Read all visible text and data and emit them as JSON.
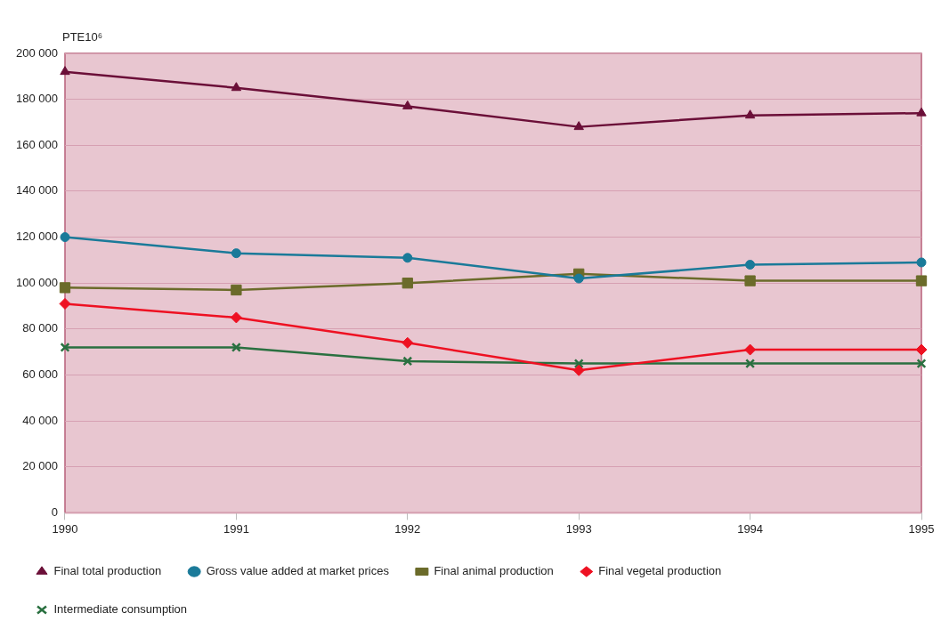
{
  "chart_data": {
    "type": "line",
    "ylabel": "PTE10⁶",
    "categories": [
      "1990",
      "1991",
      "1992",
      "1993",
      "1994",
      "1995"
    ],
    "ylim": [
      0,
      200000
    ],
    "yticks": [
      {
        "value": 0,
        "label": "0"
      },
      {
        "value": 20000,
        "label": "20 000"
      },
      {
        "value": 40000,
        "label": "40 000"
      },
      {
        "value": 60000,
        "label": "60 000"
      },
      {
        "value": 80000,
        "label": "80 000"
      },
      {
        "value": 100000,
        "label": "100 000"
      },
      {
        "value": 120000,
        "label": "120 000"
      },
      {
        "value": 140000,
        "label": "140 000"
      },
      {
        "value": 160000,
        "label": "160 000"
      },
      {
        "value": 180000,
        "label": "180 000"
      },
      {
        "value": 200000,
        "label": "200 000"
      }
    ],
    "grid": "y",
    "legend": "bottom",
    "line_style": "solid",
    "series": [
      {
        "name": "Final total production",
        "color": "#6b0f38",
        "marker": "triangle",
        "values": [
          192000,
          185000,
          177000,
          168000,
          173000,
          174000
        ]
      },
      {
        "name": "Gross value added at market prices",
        "color": "#1a7a99",
        "marker": "circle",
        "values": [
          120000,
          113000,
          111000,
          102000,
          108000,
          109000
        ]
      },
      {
        "name": "Final animal production",
        "color": "#6b6b2a",
        "marker": "square",
        "values": [
          98000,
          97000,
          100000,
          104000,
          101000,
          101000
        ]
      },
      {
        "name": "Final vegetal production",
        "color": "#ee1122",
        "marker": "diamond",
        "values": [
          91000,
          85000,
          74000,
          62000,
          71000,
          71000
        ]
      },
      {
        "name": "Intermediate consumption",
        "color": "#2a7040",
        "marker": "cross",
        "values": [
          72000,
          72000,
          66000,
          65000,
          65000,
          65000
        ]
      }
    ]
  }
}
